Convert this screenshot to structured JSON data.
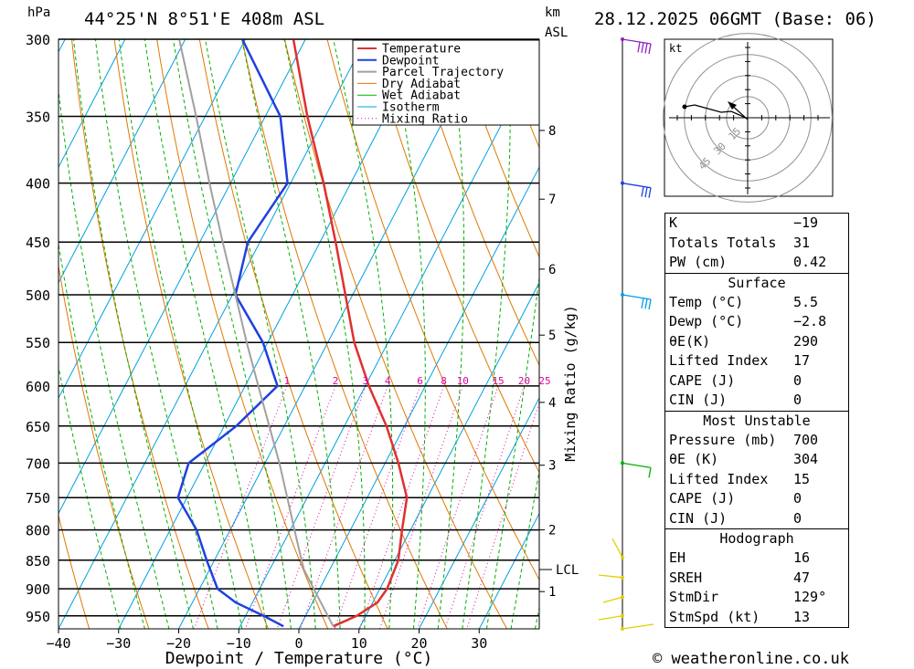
{
  "header": {
    "location": "44°25'N 8°51'E 408m ASL",
    "datetime": "28.12.2025 06GMT (Base: 06)",
    "left_unit": "hPa",
    "right_unit_top": "km",
    "right_unit_bottom": "ASL"
  },
  "footer": {
    "credit": "© weatheronline.co.uk"
  },
  "colors": {
    "temperature": "#e03030",
    "dewpoint": "#2040e0",
    "parcel": "#a0a0a0",
    "dry_adiabat": "#e07800",
    "wet_adiabat": "#00b000",
    "isotherm": "#00a0e0",
    "mixing_ratio": "#e000a0"
  },
  "chart_data": {
    "type": "line",
    "xlabel": "Dewpoint / Temperature (°C)",
    "ylabel": "hPa",
    "xlim": [
      -40,
      40
    ],
    "pressure_range": [
      300,
      975
    ],
    "x_ticks": [
      -40,
      -30,
      -20,
      -10,
      0,
      10,
      20,
      30
    ],
    "pressure_levels": [
      300,
      350,
      400,
      450,
      500,
      550,
      600,
      650,
      700,
      750,
      800,
      850,
      900,
      950
    ],
    "legend": [
      "Temperature",
      "Dewpoint",
      "Parcel Trajectory",
      "Dry Adiabat",
      "Wet Adiabat",
      "Isotherm",
      "Mixing Ratio"
    ],
    "legend_position": "top-right",
    "series": [
      {
        "name": "Temperature",
        "points": [
          [
            970,
            5.5
          ],
          [
            950,
            8.5
          ],
          [
            925,
            10.8
          ],
          [
            900,
            11.2
          ],
          [
            850,
            10.6
          ],
          [
            800,
            8.6
          ],
          [
            750,
            6.6
          ],
          [
            700,
            2.2
          ],
          [
            650,
            -3.0
          ],
          [
            600,
            -9.4
          ],
          [
            550,
            -15.6
          ],
          [
            500,
            -21.2
          ],
          [
            450,
            -27.4
          ],
          [
            400,
            -34.5
          ],
          [
            350,
            -43
          ],
          [
            300,
            -52
          ]
        ]
      },
      {
        "name": "Dewpoint",
        "points": [
          [
            970,
            -2.8
          ],
          [
            950,
            -7
          ],
          [
            925,
            -12.8
          ],
          [
            900,
            -17
          ],
          [
            850,
            -21.3
          ],
          [
            800,
            -25.6
          ],
          [
            750,
            -31.5
          ],
          [
            700,
            -32.7
          ],
          [
            650,
            -28
          ],
          [
            600,
            -24.6
          ],
          [
            550,
            -30.8
          ],
          [
            500,
            -39.5
          ],
          [
            450,
            -42
          ],
          [
            400,
            -40.5
          ],
          [
            350,
            -47.5
          ],
          [
            300,
            -60.5
          ]
        ]
      },
      {
        "name": "Parcel Trajectory",
        "points": [
          [
            970,
            5.5
          ],
          [
            900,
            -1
          ],
          [
            866,
            -4.3
          ],
          [
            850,
            -5.5
          ],
          [
            800,
            -9.3
          ],
          [
            750,
            -13.3
          ],
          [
            700,
            -17.6
          ],
          [
            650,
            -22.5
          ],
          [
            600,
            -27.8
          ],
          [
            550,
            -33.5
          ],
          [
            500,
            -39.5
          ],
          [
            450,
            -46.2
          ],
          [
            400,
            -53.5
          ],
          [
            350,
            -61.5
          ],
          [
            300,
            -71
          ]
        ]
      }
    ],
    "mixing_ratio_labels": [
      "1",
      "2",
      "3",
      "4",
      "6",
      "8",
      "10",
      "15",
      "20",
      "25"
    ],
    "mixing_ratio_axis_label": "Mixing Ratio (g/kg)",
    "km_labels": [
      {
        "km": "8",
        "p": 360
      },
      {
        "km": "7",
        "p": 413
      },
      {
        "km": "6",
        "p": 475
      },
      {
        "km": "5",
        "p": 542
      },
      {
        "km": "4",
        "p": 620
      },
      {
        "km": "3",
        "p": 703
      },
      {
        "km": "2",
        "p": 800
      },
      {
        "km": "1",
        "p": 905
      }
    ],
    "lcl_label": "LCL",
    "lcl_pressure": 866
  },
  "hodograph": {
    "unit": "kt",
    "ring_labels": [
      "15",
      "30",
      "45"
    ]
  },
  "stats": {
    "k": {
      "label": "K",
      "value": "−19"
    },
    "tt": {
      "label": "Totals Totals",
      "value": "31"
    },
    "pw": {
      "label": "PW (cm)",
      "value": "0.42"
    },
    "surface_title": "Surface",
    "temp": {
      "label": "Temp (°C)",
      "value": "5.5"
    },
    "dewp": {
      "label": "Dewp (°C)",
      "value": "−2.8"
    },
    "theta_e": {
      "label": "θE(K)",
      "value": "290"
    },
    "li": {
      "label": "Lifted Index",
      "value": "17"
    },
    "cape": {
      "label": "CAPE (J)",
      "value": "0"
    },
    "cin": {
      "label": "CIN (J)",
      "value": "0"
    },
    "mu_title": "Most Unstable",
    "mu_pressure": {
      "label": "Pressure (mb)",
      "value": "700"
    },
    "mu_theta_e": {
      "label": "θE (K)",
      "value": "304"
    },
    "mu_li": {
      "label": "Lifted Index",
      "value": "15"
    },
    "mu_cape": {
      "label": "CAPE (J)",
      "value": "0"
    },
    "mu_cin": {
      "label": "CIN (J)",
      "value": "0"
    },
    "hodo_title": "Hodograph",
    "eh": {
      "label": "EH",
      "value": "16"
    },
    "sreh": {
      "label": "SREH",
      "value": "47"
    },
    "stmdir": {
      "label": "StmDir",
      "value": "129°"
    },
    "stmspd": {
      "label": "StmSpd (kt)",
      "value": "13"
    }
  }
}
